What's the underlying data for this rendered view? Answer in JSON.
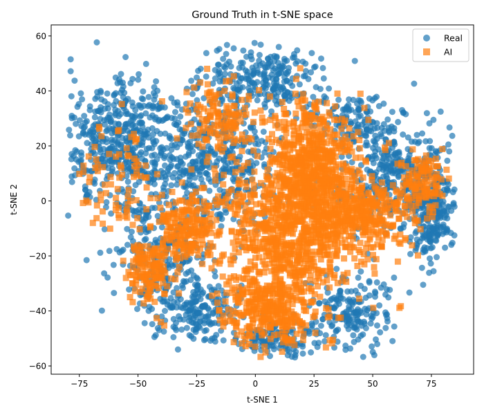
{
  "chart_data": {
    "type": "scatter",
    "title": "Ground Truth in t-SNE space",
    "xlabel": "t-SNE 1",
    "ylabel": "t-SNE 2",
    "xlim": [
      -87,
      93
    ],
    "ylim": [
      -63,
      64
    ],
    "xticks": [
      -75,
      -50,
      -25,
      0,
      25,
      50,
      75
    ],
    "yticks": [
      -60,
      -40,
      -20,
      0,
      20,
      40,
      60
    ],
    "grid": false,
    "legend_position": "top-right",
    "series": [
      {
        "name": "Real",
        "marker": "circle",
        "color": "#1f77b4",
        "opacity": 0.7,
        "regions": [
          {
            "center": [
              -55,
              20
            ],
            "radius": [
              25,
              22
            ],
            "weight": 0.22
          },
          {
            "center": [
              -40,
              -20
            ],
            "radius": [
              20,
              18
            ],
            "weight": 0.09
          },
          {
            "center": [
              5,
              45
            ],
            "radius": [
              22,
              12
            ],
            "weight": 0.1
          },
          {
            "center": [
              -15,
              15
            ],
            "radius": [
              22,
              22
            ],
            "weight": 0.14
          },
          {
            "center": [
              60,
              10
            ],
            "radius": [
              22,
              20
            ],
            "weight": 0.14
          },
          {
            "center": [
              40,
              -40
            ],
            "radius": [
              14,
              12
            ],
            "weight": 0.07
          },
          {
            "center": [
              -25,
              -40
            ],
            "radius": [
              18,
              10
            ],
            "weight": 0.07
          },
          {
            "center": [
              75,
              -5
            ],
            "radius": [
              10,
              15
            ],
            "weight": 0.08
          },
          {
            "center": [
              10,
              -50
            ],
            "radius": [
              16,
              6
            ],
            "weight": 0.05
          },
          {
            "center": [
              40,
              30
            ],
            "radius": [
              15,
              8
            ],
            "weight": 0.04
          }
        ]
      },
      {
        "name": "AI",
        "marker": "square",
        "color": "#ff7f0e",
        "opacity": 0.7,
        "regions": [
          {
            "center": [
              15,
              -10
            ],
            "radius": [
              25,
              28
            ],
            "weight": 0.34
          },
          {
            "center": [
              25,
              15
            ],
            "radius": [
              15,
              18
            ],
            "weight": 0.17
          },
          {
            "center": [
              45,
              -5
            ],
            "radius": [
              18,
              12
            ],
            "weight": 0.12
          },
          {
            "center": [
              -30,
              -10
            ],
            "radius": [
              12,
              12
            ],
            "weight": 0.08
          },
          {
            "center": [
              5,
              -40
            ],
            "radius": [
              18,
              12
            ],
            "weight": 0.11
          },
          {
            "center": [
              70,
              5
            ],
            "radius": [
              10,
              12
            ],
            "weight": 0.05
          },
          {
            "center": [
              -60,
              10
            ],
            "radius": [
              15,
              20
            ],
            "weight": 0.03
          },
          {
            "center": [
              -15,
              30
            ],
            "radius": [
              15,
              12
            ],
            "weight": 0.05
          },
          {
            "center": [
              -45,
              -25
            ],
            "radius": [
              8,
              10
            ],
            "weight": 0.05
          }
        ]
      }
    ]
  }
}
